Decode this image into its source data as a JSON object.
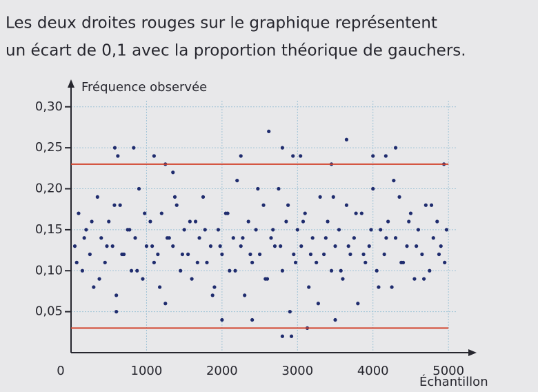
{
  "caption": [
    "Les deux droites rouges sur le graphique représentent",
    "un écart de 0,1 avec la proportion théorique de gauchers."
  ],
  "chart_data": {
    "type": "scatter",
    "xlabel": "Échantillon",
    "ylabel": "Fréquence observée",
    "color": "#1f2c6e",
    "grid": true,
    "xlim": [
      0,
      5300
    ],
    "ylim": [
      0,
      0.32
    ],
    "xticks": [
      0,
      1000,
      2000,
      3000,
      4000,
      5000
    ],
    "yticks": [
      {
        "value": 0.05,
        "label": "0,05"
      },
      {
        "value": 0.1,
        "label": "0,10"
      },
      {
        "value": 0.15,
        "label": "0,15"
      },
      {
        "value": 0.2,
        "label": "0,20"
      },
      {
        "value": 0.25,
        "label": "0,25"
      },
      {
        "value": 0.3,
        "label": "0,30"
      }
    ],
    "reference_lines": [
      {
        "value": 0.23,
        "color": "#d2452f"
      },
      {
        "value": 0.03,
        "color": "#d2452f"
      }
    ],
    "x": [
      50,
      100,
      150,
      200,
      250,
      300,
      350,
      400,
      450,
      500,
      550,
      600,
      650,
      700,
      750,
      800,
      850,
      900,
      950,
      1000,
      1050,
      1100,
      1150,
      1200,
      1250,
      1300,
      1350,
      1400,
      1450,
      1500,
      1550,
      1600,
      1650,
      1700,
      1750,
      1800,
      1850,
      1900,
      1950,
      2000,
      2050,
      2100,
      2150,
      2200,
      2250,
      2300,
      2350,
      2400,
      2450,
      2500,
      2550,
      2600,
      2650,
      2700,
      2750,
      2800,
      2850,
      2900,
      2950,
      3000,
      3050,
      3100,
      3150,
      3200,
      3250,
      3300,
      3350,
      3400,
      3450,
      3500,
      3550,
      3600,
      3650,
      3700,
      3750,
      3800,
      3850,
      3900,
      3950,
      4000,
      4050,
      4100,
      4150,
      4200,
      4250,
      4300,
      4350,
      4400,
      4450,
      4500,
      4550,
      4600,
      4650,
      4700,
      4750,
      4800,
      4850,
      4900,
      4950,
      75,
      175,
      275,
      375,
      475,
      575,
      675,
      775,
      875,
      975,
      1075,
      1175,
      1275,
      1375,
      1475,
      1575,
      1675,
      1775,
      1875,
      1975,
      2075,
      2175,
      2275,
      2375,
      2475,
      2575,
      2675,
      2775,
      2875,
      2975,
      3075,
      3175,
      3275,
      3375,
      3475,
      3575,
      3675,
      3775,
      3875,
      3975,
      4075,
      4175,
      4275,
      4375,
      4475,
      4575,
      4675,
      4775,
      4875,
      4975,
      580,
      830,
      1100,
      2250,
      2620,
      2800,
      2940,
      3040,
      3650,
      4000,
      4170,
      4300,
      620,
      1250,
      3450,
      4940,
      2800,
      2920,
      3130,
      2000,
      2400,
      3500,
      1350,
      600
    ],
    "values": [
      0.13,
      0.17,
      0.1,
      0.15,
      0.12,
      0.08,
      0.19,
      0.14,
      0.11,
      0.16,
      0.13,
      0.07,
      0.18,
      0.12,
      0.15,
      0.1,
      0.14,
      0.2,
      0.09,
      0.13,
      0.16,
      0.11,
      0.12,
      0.17,
      0.06,
      0.14,
      0.13,
      0.18,
      0.1,
      0.15,
      0.12,
      0.09,
      0.16,
      0.14,
      0.19,
      0.11,
      0.13,
      0.08,
      0.15,
      0.12,
      0.17,
      0.1,
      0.14,
      0.21,
      0.13,
      0.07,
      0.16,
      0.11,
      0.15,
      0.12,
      0.18,
      0.09,
      0.14,
      0.13,
      0.2,
      0.1,
      0.16,
      0.05,
      0.12,
      0.15,
      0.13,
      0.17,
      0.08,
      0.14,
      0.11,
      0.19,
      0.12,
      0.16,
      0.1,
      0.13,
      0.15,
      0.09,
      0.18,
      0.12,
      0.14,
      0.06,
      0.17,
      0.11,
      0.13,
      0.2,
      0.1,
      0.15,
      0.12,
      0.16,
      0.08,
      0.14,
      0.19,
      0.11,
      0.13,
      0.17,
      0.09,
      0.15,
      0.12,
      0.18,
      0.1,
      0.14,
      0.16,
      0.13,
      0.11,
      0.11,
      0.14,
      0.16,
      0.09,
      0.13,
      0.18,
      0.12,
      0.15,
      0.1,
      0.17,
      0.13,
      0.08,
      0.14,
      0.19,
      0.12,
      0.16,
      0.11,
      0.15,
      0.07,
      0.13,
      0.17,
      0.1,
      0.14,
      0.12,
      0.2,
      0.09,
      0.15,
      0.13,
      0.18,
      0.11,
      0.16,
      0.12,
      0.06,
      0.14,
      0.19,
      0.1,
      0.13,
      0.17,
      0.12,
      0.15,
      0.08,
      0.14,
      0.21,
      0.11,
      0.16,
      0.13,
      0.09,
      0.18,
      0.12,
      0.15,
      0.25,
      0.25,
      0.24,
      0.24,
      0.27,
      0.25,
      0.24,
      0.24,
      0.26,
      0.24,
      0.24,
      0.25,
      0.24,
      0.23,
      0.23,
      0.23,
      0.02,
      0.02,
      0.03,
      0.04,
      0.04,
      0.04,
      0.22,
      0.05
    ]
  }
}
